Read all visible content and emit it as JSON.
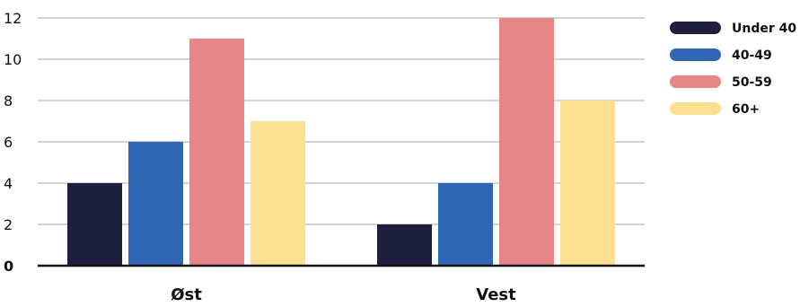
{
  "chart_data": {
    "type": "bar",
    "categories": [
      "Øst",
      "Vest"
    ],
    "series": [
      {
        "name": "Under 40",
        "values": [
          4,
          2
        ],
        "color": "#1e1f3e"
      },
      {
        "name": "40-49",
        "values": [
          6,
          4
        ],
        "color": "#2f67b2"
      },
      {
        "name": "50-59",
        "values": [
          11,
          12
        ],
        "color": "#e58788"
      },
      {
        "name": "60+",
        "values": [
          7,
          8
        ],
        "color": "#fae090"
      }
    ],
    "ylim": [
      0,
      12
    ],
    "yticks": [
      "0",
      "2",
      "4",
      "6",
      "8",
      "10",
      "12"
    ],
    "grid": true,
    "legend_position": "right"
  }
}
